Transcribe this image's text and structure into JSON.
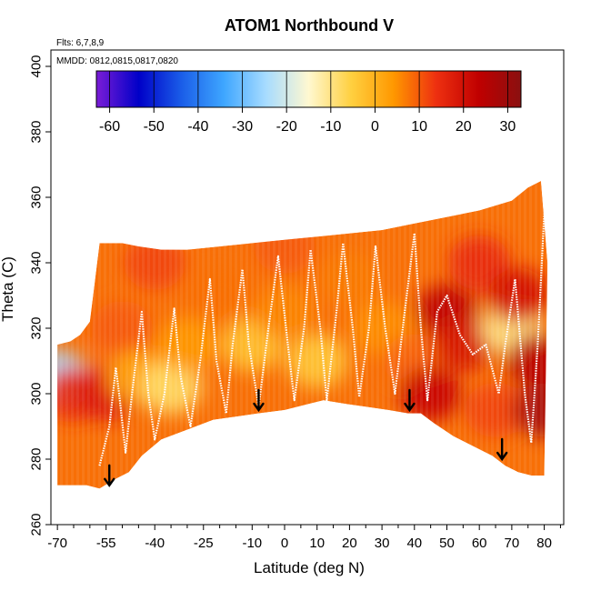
{
  "chart_data": {
    "type": "heatmap",
    "title": "ATOM1 Northbound V",
    "annotations": {
      "flights": "Flts: 6,7,8,9",
      "dates": "MMDD: 0812,0815,0817,0820"
    },
    "xlabel": "Latitude (deg N)",
    "ylabel": "Theta (C)",
    "xlim": [
      -72,
      86
    ],
    "ylim": [
      260,
      405
    ],
    "x_ticks": [
      -70,
      -55,
      -40,
      -25,
      -10,
      0,
      10,
      20,
      30,
      40,
      50,
      60,
      70,
      80
    ],
    "x_tick_labels": [
      "-70",
      "-55",
      "-40",
      "-25",
      "-10",
      "0",
      "10",
      "20",
      "30",
      "40",
      "50",
      "60",
      "70",
      "80"
    ],
    "x_minor_ticks": [
      -65,
      -60,
      -50,
      -45,
      -35,
      -30,
      -20,
      -15,
      -5,
      5,
      15,
      25,
      35,
      45,
      55,
      65,
      75,
      85
    ],
    "y_ticks": [
      260,
      280,
      300,
      320,
      340,
      360,
      380,
      400
    ],
    "y_tick_labels": [
      "260",
      "280",
      "300",
      "320",
      "340",
      "360",
      "380",
      "400"
    ],
    "colorbar": {
      "range": [
        -63,
        33
      ],
      "ticks": [
        -60,
        -50,
        -40,
        -30,
        -20,
        -10,
        0,
        10,
        20,
        30
      ],
      "tick_labels": [
        "-60",
        "-50",
        "-40",
        "-30",
        "-20",
        "-10",
        "0",
        "10",
        "20",
        "30"
      ],
      "colors": [
        "#7a1cd6",
        "#0000c8",
        "#1a5de8",
        "#3ea6ff",
        "#a8dcff",
        "#fff8d0",
        "#ffd040",
        "#ff9800",
        "#ee3010",
        "#c00000",
        "#8a1010"
      ]
    },
    "field": {
      "lower_boundary": [
        [
          -70,
          272
        ],
        [
          -66,
          272
        ],
        [
          -61,
          272
        ],
        [
          -57,
          271
        ],
        [
          -52,
          274
        ],
        [
          -48,
          276
        ],
        [
          -44,
          281
        ],
        [
          -38,
          286
        ],
        [
          -30,
          289
        ],
        [
          -22,
          292
        ],
        [
          -15,
          293
        ],
        [
          -8,
          294
        ],
        [
          0,
          295
        ],
        [
          8,
          297
        ],
        [
          12,
          298
        ],
        [
          18,
          297
        ],
        [
          25,
          296
        ],
        [
          32,
          295
        ],
        [
          38,
          294
        ],
        [
          42,
          294
        ],
        [
          46,
          291
        ],
        [
          52,
          287
        ],
        [
          58,
          284
        ],
        [
          64,
          281
        ],
        [
          68,
          278
        ],
        [
          72,
          276
        ],
        [
          76,
          275
        ],
        [
          80,
          275
        ]
      ],
      "upper_boundary": [
        [
          -70,
          315
        ],
        [
          -66,
          316
        ],
        [
          -63,
          318
        ],
        [
          -60,
          322
        ],
        [
          -57,
          346
        ],
        [
          -50,
          346
        ],
        [
          -45,
          345
        ],
        [
          -38,
          344
        ],
        [
          -30,
          344
        ],
        [
          -20,
          345
        ],
        [
          -10,
          346
        ],
        [
          0,
          347
        ],
        [
          10,
          348
        ],
        [
          20,
          349
        ],
        [
          30,
          350
        ],
        [
          40,
          352
        ],
        [
          50,
          354
        ],
        [
          60,
          356
        ],
        [
          70,
          359
        ],
        [
          75,
          363
        ],
        [
          79,
          365
        ],
        [
          81,
          340
        ]
      ],
      "regions": [
        {
          "lat": -70,
          "theta": 305,
          "v": -25
        },
        {
          "lat": -65,
          "theta": 300,
          "v": 15
        },
        {
          "lat": -55,
          "theta": 300,
          "v": 18
        },
        {
          "lat": -50,
          "theta": 320,
          "v": 10
        },
        {
          "lat": -45,
          "theta": 305,
          "v": 2
        },
        {
          "lat": -35,
          "theta": 302,
          "v": -8
        },
        {
          "lat": -30,
          "theta": 315,
          "v": 4
        },
        {
          "lat": -20,
          "theta": 330,
          "v": 8
        },
        {
          "lat": -10,
          "theta": 315,
          "v": -3
        },
        {
          "lat": 0,
          "theta": 325,
          "v": 6
        },
        {
          "lat": 10,
          "theta": 310,
          "v": -4
        },
        {
          "lat": 20,
          "theta": 335,
          "v": 7
        },
        {
          "lat": 30,
          "theta": 320,
          "v": 5
        },
        {
          "lat": 40,
          "theta": 310,
          "v": 9
        },
        {
          "lat": 45,
          "theta": 300,
          "v": 22
        },
        {
          "lat": 50,
          "theta": 325,
          "v": 24
        },
        {
          "lat": 55,
          "theta": 315,
          "v": 19
        },
        {
          "lat": 60,
          "theta": 340,
          "v": 15
        },
        {
          "lat": 65,
          "theta": 295,
          "v": 12
        },
        {
          "lat": 70,
          "theta": 320,
          "v": -10
        },
        {
          "lat": 72,
          "theta": 330,
          "v": 20
        },
        {
          "lat": 78,
          "theta": 310,
          "v": 25
        },
        {
          "lat": 80,
          "theta": 295,
          "v": 28
        },
        {
          "lat": 0,
          "theta": 345,
          "v": 10
        },
        {
          "lat": -40,
          "theta": 340,
          "v": 12
        }
      ]
    },
    "arrows": [
      {
        "lat": -54,
        "theta": 272
      },
      {
        "lat": -8,
        "theta": 295
      },
      {
        "lat": 38.5,
        "theta": 295
      },
      {
        "lat": 67,
        "theta": 280
      }
    ],
    "flight_tracks": [
      [
        [
          -57,
          278
        ],
        [
          -54,
          290
        ],
        [
          -52,
          308
        ],
        [
          -51,
          300
        ],
        [
          -49,
          282
        ],
        [
          -47,
          300
        ],
        [
          -44,
          325
        ],
        [
          -42,
          300
        ],
        [
          -40,
          286
        ],
        [
          -37,
          300
        ],
        [
          -34,
          326
        ],
        [
          -32,
          305
        ],
        [
          -29,
          290
        ],
        [
          -26,
          310
        ],
        [
          -23,
          335
        ],
        [
          -21,
          310
        ],
        [
          -18,
          294
        ],
        [
          -16,
          315
        ],
        [
          -13,
          338
        ],
        [
          -11,
          315
        ],
        [
          -8,
          296
        ],
        [
          -5,
          320
        ],
        [
          -2,
          342
        ],
        [
          1,
          315
        ],
        [
          3,
          298
        ],
        [
          6,
          320
        ],
        [
          8,
          344
        ],
        [
          11,
          320
        ],
        [
          13,
          298
        ],
        [
          16,
          325
        ],
        [
          18,
          346
        ],
        [
          21,
          320
        ],
        [
          23,
          299
        ],
        [
          26,
          320
        ],
        [
          28,
          345
        ],
        [
          31,
          320
        ],
        [
          34,
          300
        ],
        [
          37,
          325
        ],
        [
          40,
          349
        ],
        [
          42,
          320
        ],
        [
          44,
          298
        ],
        [
          47,
          325
        ],
        [
          50,
          330
        ],
        [
          54,
          318
        ],
        [
          58,
          312
        ],
        [
          62,
          315
        ],
        [
          66,
          300
        ],
        [
          68,
          315
        ],
        [
          71,
          335
        ],
        [
          74,
          300
        ],
        [
          76,
          285
        ],
        [
          78,
          315
        ],
        [
          80,
          355
        ]
      ]
    ]
  }
}
